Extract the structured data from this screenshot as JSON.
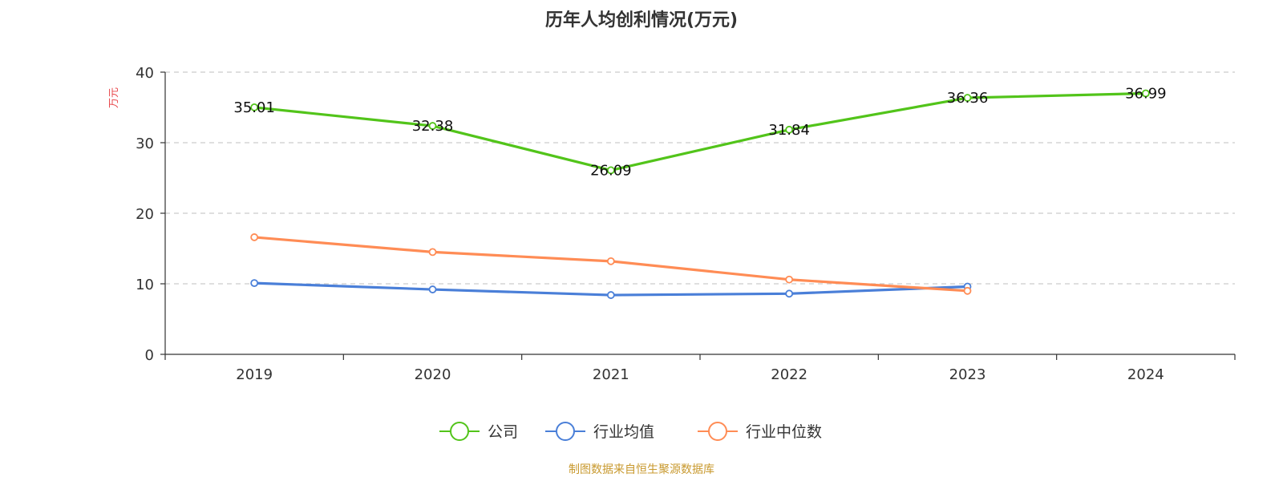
{
  "chart_data": {
    "type": "line",
    "title": "历年人均创利情况(万元)",
    "ylabel": "万元",
    "xlabel": "",
    "categories": [
      "2019",
      "2020",
      "2021",
      "2022",
      "2023",
      "2024"
    ],
    "ylim": [
      0,
      40
    ],
    "yticks": [
      0,
      10,
      20,
      30,
      40
    ],
    "grid": true,
    "legend_position": "bottom",
    "series": [
      {
        "name": "公司",
        "color": "#52c41a",
        "values": [
          35.01,
          32.38,
          26.09,
          31.84,
          36.36,
          36.99
        ],
        "labels": [
          "35.01",
          "32.38",
          "26.09",
          "31.84",
          "36.36",
          "36.99"
        ]
      },
      {
        "name": "行业均值",
        "color": "#4a7fd8",
        "values": [
          10.1,
          9.2,
          8.4,
          8.6,
          9.6,
          null
        ]
      },
      {
        "name": "行业中位数",
        "color": "#ff8c55",
        "values": [
          16.6,
          14.5,
          13.2,
          10.6,
          9.0,
          null
        ]
      }
    ]
  },
  "source_text": "制图数据来自恒生聚源数据库",
  "colors": {
    "axis": "#333333",
    "grid": "#cccccc",
    "unit_label": "#e8474b",
    "source": "#c8992e"
  }
}
